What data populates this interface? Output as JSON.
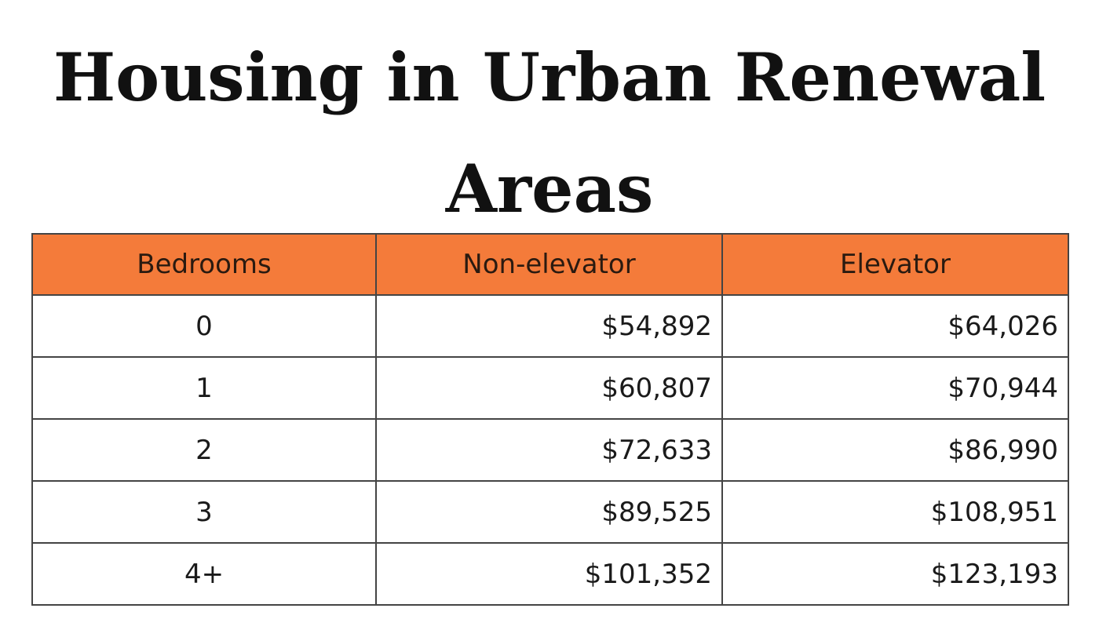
{
  "title": "Housing in Urban Renewal Areas",
  "colors": {
    "header_background": "#f47b3a",
    "border": "#444444",
    "text": "#1a1a1a"
  },
  "table": {
    "headers": [
      "Bedrooms",
      "Non-elevator",
      "Elevator"
    ],
    "rows": [
      {
        "bedrooms": "0",
        "non_elevator": "$54,892",
        "elevator": "$64,026"
      },
      {
        "bedrooms": "1",
        "non_elevator": "$60,807",
        "elevator": "$70,944"
      },
      {
        "bedrooms": "2",
        "non_elevator": "$72,633",
        "elevator": "$86,990"
      },
      {
        "bedrooms": "3",
        "non_elevator": "$89,525",
        "elevator": "$108,951"
      },
      {
        "bedrooms": "4+",
        "non_elevator": "$101,352",
        "elevator": "$123,193"
      }
    ]
  }
}
